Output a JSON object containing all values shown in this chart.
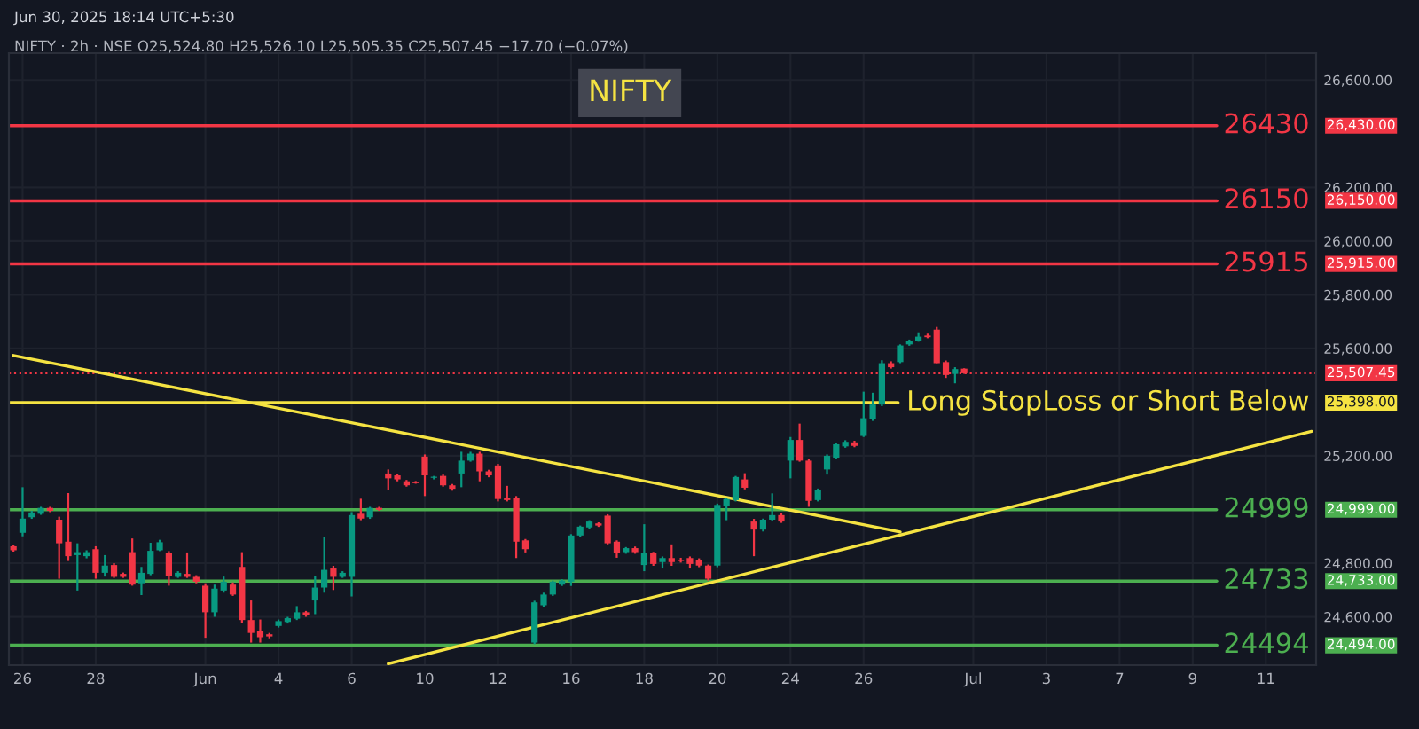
{
  "chart_data": {
    "type": "candlestick",
    "title": "NIFTY",
    "annotations": [
      "Jun 30, 2025 18:14 UTC+5:30",
      "NIFTY · 2h · NSE O25,524.80 H25,526.10 L25,505.35 C25,507.45 −17.70 (−0.07%)",
      "26,430.00",
      "26,150.00",
      "25,915.00",
      "25,507.45",
      "25,398.00",
      "24,999.00",
      "24,733.00",
      "24,494.00"
    ],
    "categories": [
      null,
      "26",
      null,
      null,
      null,
      null,
      null,
      null,
      null,
      "28",
      null,
      null,
      null,
      null,
      null,
      null,
      null,
      null,
      null,
      null,
      null,
      "Jun",
      null,
      null,
      null,
      null,
      null,
      null,
      null,
      "4",
      null,
      null,
      null,
      null,
      null,
      null,
      null,
      "6",
      null,
      null,
      null,
      null,
      null,
      null,
      null,
      "10",
      null,
      null,
      null,
      null,
      null,
      null,
      null,
      "12",
      null,
      null,
      null,
      null,
      null,
      null,
      null,
      "16",
      null,
      null,
      null,
      null,
      null,
      null,
      null,
      "18",
      null,
      null,
      null,
      null,
      null,
      null,
      null,
      "20",
      null,
      null,
      null,
      null,
      null,
      null,
      null,
      "24",
      null,
      null,
      null,
      null,
      null,
      null,
      null,
      "26",
      null,
      null,
      null,
      null,
      null,
      null,
      null,
      null,
      null,
      null,
      null,
      "Jul",
      null,
      null,
      null,
      null,
      null,
      null,
      null,
      "3",
      null,
      null,
      null,
      null,
      null,
      null,
      null,
      "7",
      null,
      null,
      null,
      null,
      null,
      null,
      null,
      "9",
      null,
      null,
      null,
      null,
      null,
      null,
      null,
      "11",
      null,
      null,
      null,
      null,
      null
    ],
    "ohlc": [
      [
        24863,
        24868,
        24843,
        24848
      ],
      [
        24913,
        25083,
        24900,
        24966
      ],
      [
        24971,
        24995,
        24965,
        24989
      ],
      [
        24984,
        25010,
        24980,
        25006
      ],
      [
        25006,
        25010,
        24990,
        24995
      ],
      [
        24962,
        24973,
        24742,
        24874
      ],
      [
        24880,
        25061,
        24808,
        24826
      ],
      [
        24830,
        24874,
        24698,
        24841
      ],
      [
        24826,
        24848,
        24818,
        24841
      ],
      [
        24852,
        24863,
        24742,
        24764
      ],
      [
        24764,
        24830,
        24750,
        24791
      ],
      [
        24793,
        24800,
        24745,
        24749
      ],
      [
        24760,
        24765,
        24745,
        24749
      ],
      [
        24841,
        24892,
        24716,
        24720
      ],
      [
        24725,
        24786,
        24681,
        24764
      ],
      [
        24760,
        24876,
        24755,
        24846
      ],
      [
        24848,
        24887,
        24845,
        24878
      ],
      [
        24837,
        24845,
        24716,
        24753
      ],
      [
        24749,
        24770,
        24745,
        24764
      ],
      [
        24760,
        24840,
        24745,
        24749
      ],
      [
        24749,
        24755,
        24725,
        24731
      ],
      [
        24716,
        24725,
        24522,
        24617
      ],
      [
        24617,
        24720,
        24600,
        24705
      ],
      [
        24698,
        24750,
        24690,
        24731
      ],
      [
        24720,
        24728,
        24678,
        24683
      ],
      [
        24786,
        24841,
        24577,
        24588
      ],
      [
        24588,
        24661,
        24504,
        24540
      ],
      [
        24546,
        24590,
        24504,
        24524
      ],
      [
        24535,
        24540,
        24520,
        24527
      ],
      [
        24566,
        24590,
        24560,
        24584
      ],
      [
        24581,
        24600,
        24575,
        24595
      ],
      [
        24593,
        24640,
        24588,
        24617
      ],
      [
        24617,
        24622,
        24600,
        24606
      ],
      [
        24661,
        24753,
        24610,
        24709
      ],
      [
        24709,
        24896,
        24690,
        24775
      ],
      [
        24780,
        24790,
        24700,
        24749
      ],
      [
        24749,
        24770,
        24745,
        24764
      ],
      [
        24749,
        24990,
        24676,
        24979
      ],
      [
        24984,
        25040,
        24960,
        24966
      ],
      [
        24971,
        25010,
        24965,
        25006
      ],
      [
        25006,
        25010,
        24995,
        24999
      ],
      [
        25134,
        25149,
        25072,
        25116
      ],
      [
        25127,
        25132,
        25105,
        25112
      ],
      [
        25105,
        25110,
        25085,
        25090
      ],
      [
        25102,
        25106,
        25096,
        25098
      ],
      [
        25197,
        25205,
        25050,
        25127
      ],
      [
        25118,
        25125,
        25112,
        25122
      ],
      [
        25125,
        25130,
        25085,
        25090
      ],
      [
        25090,
        25095,
        25070,
        25077
      ],
      [
        25134,
        25215,
        25083,
        25182
      ],
      [
        25182,
        25215,
        25178,
        25208
      ],
      [
        25208,
        25215,
        25105,
        25142
      ],
      [
        25142,
        25148,
        25120,
        25127
      ],
      [
        25164,
        25170,
        25030,
        25039
      ],
      [
        25044,
        25088,
        25030,
        25035
      ],
      [
        25044,
        25050,
        24819,
        24880
      ],
      [
        24885,
        24890,
        24840,
        24852
      ],
      [
        24504,
        24660,
        24498,
        24654
      ],
      [
        24643,
        24690,
        24635,
        24683
      ],
      [
        24683,
        24735,
        24678,
        24731
      ],
      [
        24720,
        24740,
        24715,
        24735
      ],
      [
        24731,
        24908,
        24715,
        24903
      ],
      [
        24903,
        24940,
        24898,
        24936
      ],
      [
        24933,
        24960,
        24928,
        24955
      ],
      [
        24948,
        24952,
        24935,
        24940
      ],
      [
        24977,
        24982,
        24870,
        24874
      ],
      [
        24880,
        24885,
        24820,
        24837
      ],
      [
        24841,
        24860,
        24835,
        24856
      ],
      [
        24856,
        24862,
        24835,
        24841
      ],
      [
        24793,
        24945,
        24770,
        24837
      ],
      [
        24837,
        24842,
        24790,
        24797
      ],
      [
        24804,
        24825,
        24780,
        24819
      ],
      [
        24819,
        24870,
        24790,
        24804
      ],
      [
        24812,
        24820,
        24802,
        24808
      ],
      [
        24819,
        24825,
        24780,
        24797
      ],
      [
        24813,
        24818,
        24785,
        24791
      ],
      [
        24791,
        24795,
        24735,
        24742
      ],
      [
        24791,
        25022,
        24785,
        25017
      ],
      [
        25013,
        25044,
        24960,
        25039
      ],
      [
        25035,
        25125,
        25030,
        25121
      ],
      [
        25112,
        25135,
        25075,
        25081
      ],
      [
        24955,
        24965,
        24826,
        24925
      ],
      [
        24925,
        24966,
        24918,
        24962
      ],
      [
        24962,
        25060,
        24958,
        24979
      ],
      [
        24979,
        24985,
        24950,
        24955
      ],
      [
        25182,
        25270,
        25116,
        25259
      ],
      [
        25259,
        25320,
        25178,
        25182
      ],
      [
        25182,
        25188,
        25010,
        25032
      ],
      [
        25035,
        25078,
        25030,
        25072
      ],
      [
        25149,
        25205,
        25130,
        25200
      ],
      [
        25193,
        25248,
        25188,
        25243
      ],
      [
        25235,
        25258,
        25230,
        25252
      ],
      [
        25250,
        25256,
        25232,
        25237
      ],
      [
        25274,
        25439,
        25270,
        25340
      ],
      [
        25336,
        25435,
        25330,
        25391
      ],
      [
        25391,
        25556,
        25385,
        25545
      ],
      [
        25545,
        25552,
        25525,
        25530
      ],
      [
        25549,
        25615,
        25545,
        25611
      ],
      [
        25615,
        25633,
        25610,
        25629
      ],
      [
        25629,
        25660,
        25625,
        25644
      ],
      [
        25648,
        25655,
        25638,
        25642
      ],
      [
        25670,
        25680,
        25545,
        25545
      ],
      [
        25549,
        25555,
        25490,
        25501
      ],
      [
        25505,
        25530,
        25470,
        25523
      ],
      [
        25524.8,
        25526.1,
        25505.35,
        25507.45
      ],
      null,
      null,
      null,
      null,
      null,
      null,
      null,
      null,
      null,
      null,
      null,
      null,
      null,
      null,
      null,
      null,
      null,
      null,
      null,
      null,
      null,
      null,
      null,
      null,
      null,
      null,
      null,
      null,
      null,
      null,
      null,
      null,
      null,
      null,
      null,
      null,
      null,
      null
    ],
    "series": [
      {
        "type": "line",
        "color": "#f5e342",
        "values": [
          25574,
          null,
          null,
          null,
          null,
          null,
          null,
          null,
          null,
          null,
          null,
          null,
          null,
          null,
          null,
          null,
          null,
          null,
          null,
          null,
          null,
          null,
          null,
          null,
          null,
          null,
          null,
          null,
          null,
          null,
          null,
          null,
          null,
          null,
          null,
          null,
          null,
          null,
          null,
          null,
          null,
          null,
          null,
          null,
          null,
          null,
          null,
          null,
          null,
          null,
          null,
          null,
          null,
          null,
          null,
          null,
          null,
          null,
          null,
          null,
          null,
          null,
          null,
          null,
          null,
          null,
          null,
          null,
          null,
          null,
          null,
          null,
          null,
          null,
          null,
          null,
          null,
          null,
          null,
          null,
          null,
          null,
          null,
          null,
          null,
          null,
          null,
          null,
          null,
          null,
          null,
          null,
          null,
          null,
          null,
          null,
          null,
          24916,
          null,
          null,
          null,
          null,
          null,
          null,
          null,
          null,
          null,
          null,
          null,
          null,
          null,
          null,
          null,
          null,
          null,
          null,
          null,
          null,
          null,
          null,
          null,
          null,
          null,
          null,
          null,
          null,
          null,
          null,
          null,
          null,
          null,
          null,
          null,
          null,
          null,
          null,
          null,
          null,
          null,
          null,
          null,
          null,
          null
        ]
      },
      {
        "type": "line",
        "color": "#f5e342",
        "values": [
          null,
          null,
          null,
          null,
          null,
          null,
          null,
          null,
          null,
          null,
          null,
          null,
          null,
          null,
          null,
          null,
          null,
          null,
          null,
          null,
          null,
          null,
          null,
          null,
          null,
          null,
          null,
          null,
          null,
          null,
          null,
          null,
          null,
          null,
          null,
          null,
          null,
          null,
          null,
          null,
          null,
          24425,
          null,
          null,
          null,
          null,
          null,
          null,
          null,
          null,
          null,
          null,
          null,
          null,
          null,
          null,
          null,
          null,
          null,
          null,
          null,
          null,
          null,
          null,
          null,
          null,
          null,
          null,
          null,
          null,
          null,
          null,
          null,
          null,
          null,
          null,
          null,
          null,
          null,
          null,
          null,
          null,
          null,
          null,
          null,
          null,
          null,
          null,
          null,
          null,
          null,
          null,
          null,
          null,
          null,
          null,
          null,
          null,
          null,
          null,
          null,
          null,
          null,
          null,
          null,
          null,
          null,
          null,
          null,
          null,
          null,
          null,
          null,
          null,
          null,
          null,
          null,
          null,
          null,
          null,
          null,
          null,
          null,
          null,
          null,
          null,
          null,
          null,
          null,
          null,
          null,
          null,
          null,
          null,
          null,
          null,
          null,
          null,
          null,
          null,
          null,
          null,
          25291
        ]
      }
    ],
    "ref_lines": [
      {
        "axis": "y",
        "value": 26430,
        "label": "26430",
        "color": "#f23645",
        "line_style": "solid"
      },
      {
        "axis": "y",
        "value": 26150,
        "label": "26150",
        "color": "#f23645",
        "line_style": "solid"
      },
      {
        "axis": "y",
        "value": 25915,
        "label": "25915",
        "color": "#f23645",
        "line_style": "solid"
      },
      {
        "axis": "y",
        "value": 25507.45,
        "color": "#f23645",
        "line_style": "dotted"
      },
      {
        "axis": "y",
        "value": 25398,
        "label": "Long StopLoss or Short Below",
        "color": "#f5e342",
        "line_style": "solid"
      },
      {
        "axis": "y",
        "value": 24999,
        "label": "24999",
        "color": "#4caf50",
        "line_style": "solid"
      },
      {
        "axis": "y",
        "value": 24733,
        "label": "24733",
        "color": "#4caf50",
        "line_style": "solid"
      },
      {
        "axis": "y",
        "value": 24494,
        "label": "24494",
        "color": "#4caf50",
        "line_style": "solid"
      }
    ],
    "ylim": [
      24420,
      26700
    ],
    "yticks": [
      {
        "value": 24600,
        "label": "24,600.00"
      },
      {
        "value": 24800,
        "label": "24,800.00"
      },
      {
        "value": 25200,
        "label": "25,200.00"
      },
      {
        "value": 25600,
        "label": "25,600.00"
      },
      {
        "value": 25800,
        "label": "25,800.00"
      },
      {
        "value": 26000,
        "label": "26,000.00"
      },
      {
        "value": 26200,
        "label": "26,200.00"
      },
      {
        "value": 26600,
        "label": "26,600.00"
      }
    ],
    "grid": true
  }
}
